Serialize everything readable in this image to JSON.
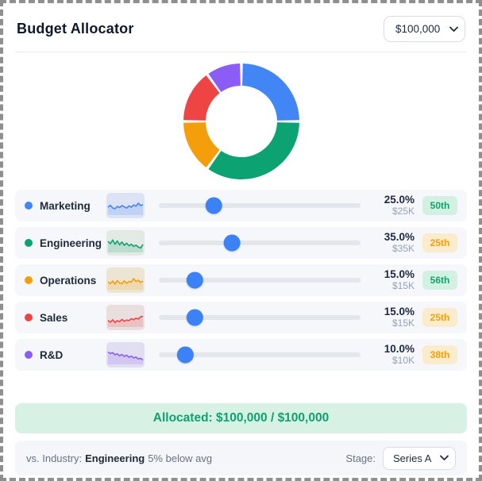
{
  "header": {
    "title": "Budget Allocator",
    "budget_select_value": "$100,000"
  },
  "chart_data": {
    "type": "pie",
    "donut": true,
    "categories": [
      "Marketing",
      "Engineering",
      "Operations",
      "Sales",
      "R&D"
    ],
    "values": [
      25,
      35,
      15,
      15,
      10
    ],
    "colors": [
      "#4285f4",
      "#0da271",
      "#f59e0b",
      "#ef4444",
      "#8b5cf6"
    ],
    "start_angle_deg": 0,
    "direction": "clockwise",
    "legend_position": "none",
    "title": ""
  },
  "rows": [
    {
      "label": "Marketing",
      "color": "#4285f4",
      "sparkline_bg": "#dce3f4",
      "sparkline": [
        50,
        62,
        45,
        40,
        55,
        48,
        60,
        52,
        44,
        58,
        50,
        64,
        56,
        75,
        60,
        66
      ],
      "percent": 25,
      "percent_label": "25.0%",
      "amount_label": "$25K",
      "percentile_label": "50th",
      "percentile_tone": "green"
    },
    {
      "label": "Engineering",
      "color": "#0da271",
      "sparkline_bg": "#e2eae3",
      "sparkline": [
        70,
        55,
        78,
        52,
        72,
        48,
        66,
        45,
        58,
        42,
        52,
        38,
        46,
        34,
        28,
        50
      ],
      "percent": 35,
      "percent_label": "35.0%",
      "amount_label": "$35K",
      "percentile_label": "25th",
      "percentile_tone": "amber"
    },
    {
      "label": "Operations",
      "color": "#f59e0b",
      "sparkline_bg": "#ede5d3",
      "sparkline": [
        50,
        38,
        55,
        35,
        58,
        42,
        38,
        56,
        40,
        52,
        48,
        70,
        52,
        60,
        45,
        55
      ],
      "percent": 15,
      "percent_label": "15.0%",
      "amount_label": "$15K",
      "percentile_label": "56th",
      "percentile_tone": "green"
    },
    {
      "label": "Sales",
      "color": "#ef4444",
      "sparkline_bg": "#eadfdf",
      "sparkline": [
        42,
        30,
        46,
        28,
        40,
        34,
        48,
        36,
        44,
        40,
        52,
        46,
        56,
        50,
        64,
        68
      ],
      "percent": 15,
      "percent_label": "15.0%",
      "amount_label": "$15K",
      "percentile_label": "25th",
      "percentile_tone": "amber"
    },
    {
      "label": "R&D",
      "color": "#8b5cf6",
      "sparkline_bg": "#e2def1",
      "sparkline": [
        78,
        68,
        74,
        60,
        66,
        54,
        62,
        50,
        58,
        44,
        52,
        40,
        46,
        34,
        38,
        26
      ],
      "percent": 10,
      "percent_label": "10.0%",
      "amount_label": "$10K",
      "percentile_label": "38th",
      "percentile_tone": "amber"
    }
  ],
  "banner": {
    "text": "Allocated: $100,000 / $100,000"
  },
  "footer": {
    "industry_prefix": "vs. Industry:",
    "industry_name": "Engineering",
    "industry_note": "5% below avg",
    "stage_label": "Stage:",
    "stage_select_value": "Series A"
  },
  "colors": {
    "accent_blue": "#3b82f6",
    "banner_bg": "#d7f2e4",
    "banner_text": "#0da271",
    "badge_green_bg": "#d2f1e2",
    "badge_green_text": "#0fa36f",
    "badge_amber_bg": "#fcecce",
    "badge_amber_text": "#f59e0b",
    "row_bg": "#f5f7fa",
    "slider_track": "#e3e6eb"
  }
}
